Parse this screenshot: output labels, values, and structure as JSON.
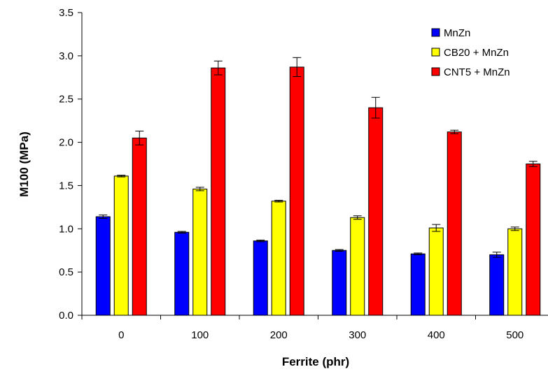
{
  "chart_data": {
    "type": "bar",
    "title": "",
    "xlabel": "Ferrite (phr)",
    "ylabel": "M100 (MPa)",
    "ylim": [
      0,
      3.5
    ],
    "yticks": [
      "0.0",
      "0.5",
      "1.0",
      "1.5",
      "2.0",
      "2.5",
      "3.0",
      "3.5"
    ],
    "categories": [
      "0",
      "100",
      "200",
      "300",
      "400",
      "500"
    ],
    "legend_position": "top-right",
    "grid": false,
    "series": [
      {
        "name": "MnZn",
        "color": "#0000ff",
        "values": [
          1.14,
          0.96,
          0.86,
          0.75,
          0.71,
          0.7
        ],
        "errors": [
          0.02,
          0.01,
          0.01,
          0.01,
          0.01,
          0.03
        ]
      },
      {
        "name": "CB20 + MnZn",
        "color": "#ffff00",
        "values": [
          1.61,
          1.46,
          1.32,
          1.13,
          1.01,
          1.0
        ],
        "errors": [
          0.01,
          0.02,
          0.01,
          0.02,
          0.04,
          0.02
        ]
      },
      {
        "name": "CNT5 + MnZn",
        "color": "#ff0000",
        "values": [
          2.05,
          2.86,
          2.87,
          2.4,
          2.12,
          1.75
        ],
        "errors": [
          0.08,
          0.08,
          0.11,
          0.12,
          0.02,
          0.03
        ]
      }
    ]
  }
}
